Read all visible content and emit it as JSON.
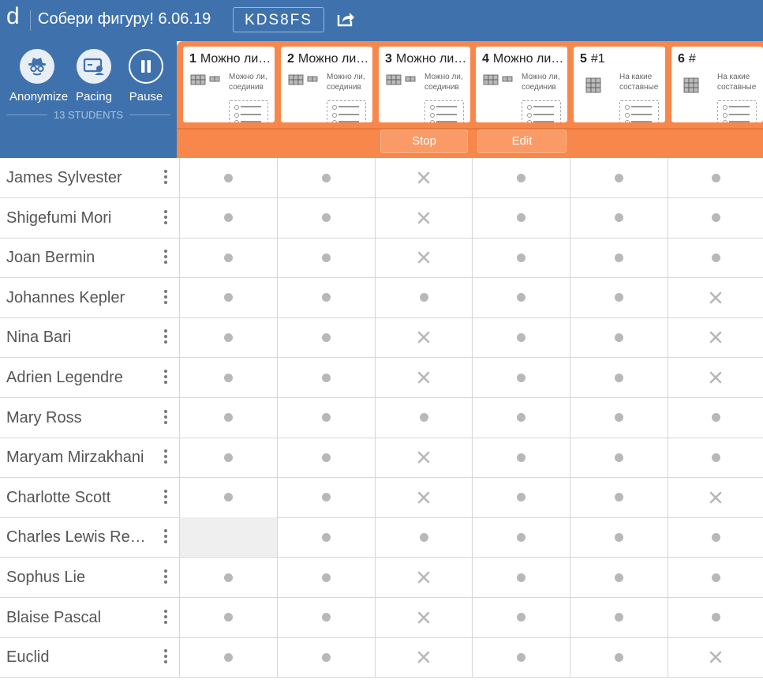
{
  "header": {
    "logo": "d",
    "title": "Собери фигуру! 6.06.19",
    "class_code": "KDS8FS",
    "share_icon": "share-icon"
  },
  "controls": {
    "anonymize": "Anonymize",
    "pacing": "Pacing",
    "pause": "Pause",
    "students_count": "13 STUDENTS"
  },
  "screens": [
    {
      "num": "1",
      "title": "Можно ли, соединив...",
      "text": "Можно ли, соединив"
    },
    {
      "num": "2",
      "title": "Можно ли, соединив...",
      "text": "Можно ли, соединив"
    },
    {
      "num": "3",
      "title": "Можно ли, соединив...",
      "text": "Можно ли, соединив"
    },
    {
      "num": "4",
      "title": "Можно ли, соединив...",
      "text": "Можно ли, соединив"
    },
    {
      "num": "5",
      "title": "#1",
      "text": "На какие составные части"
    },
    {
      "num": "6",
      "title": "#",
      "text": "На какие составные части"
    }
  ],
  "pacing_buttons": {
    "stop": "Stop",
    "edit": "Edit"
  },
  "students": [
    {
      "name": "James Sylvester",
      "cells": [
        "dot",
        "dot",
        "x",
        "dot",
        "dot",
        "dot"
      ]
    },
    {
      "name": "Shigefumi Mori",
      "cells": [
        "dot",
        "dot",
        "x",
        "dot",
        "dot",
        "dot"
      ]
    },
    {
      "name": "Joan Bermin",
      "cells": [
        "dot",
        "dot",
        "x",
        "dot",
        "dot",
        "dot"
      ]
    },
    {
      "name": "Johannes Kepler",
      "cells": [
        "dot",
        "dot",
        "dot",
        "dot",
        "dot",
        "x"
      ]
    },
    {
      "name": "Nina Bari",
      "cells": [
        "dot",
        "dot",
        "x",
        "dot",
        "dot",
        "x"
      ]
    },
    {
      "name": "Adrien Legendre",
      "cells": [
        "dot",
        "dot",
        "x",
        "dot",
        "dot",
        "x"
      ]
    },
    {
      "name": "Mary Ross",
      "cells": [
        "dot",
        "dot",
        "dot",
        "dot",
        "dot",
        "dot"
      ]
    },
    {
      "name": "Maryam Mirzakhani",
      "cells": [
        "dot",
        "dot",
        "x",
        "dot",
        "dot",
        "dot"
      ]
    },
    {
      "name": "Charlotte Scott",
      "cells": [
        "dot",
        "dot",
        "x",
        "dot",
        "dot",
        "x"
      ]
    },
    {
      "name": "Charles Lewis Reynolds",
      "cells": [
        "empty",
        "dot",
        "dot",
        "dot",
        "dot",
        "dot"
      ]
    },
    {
      "name": "Sophus Lie",
      "cells": [
        "dot",
        "dot",
        "x",
        "dot",
        "dot",
        "dot"
      ]
    },
    {
      "name": "Blaise Pascal",
      "cells": [
        "dot",
        "dot",
        "x",
        "dot",
        "dot",
        "dot"
      ]
    },
    {
      "name": "Euclid",
      "cells": [
        "dot",
        "dot",
        "x",
        "dot",
        "dot",
        "x"
      ]
    }
  ],
  "colors": {
    "header_blue": "#3f72ad",
    "pacing_orange": "#f7874a",
    "status_gray": "#b8b8b8"
  }
}
